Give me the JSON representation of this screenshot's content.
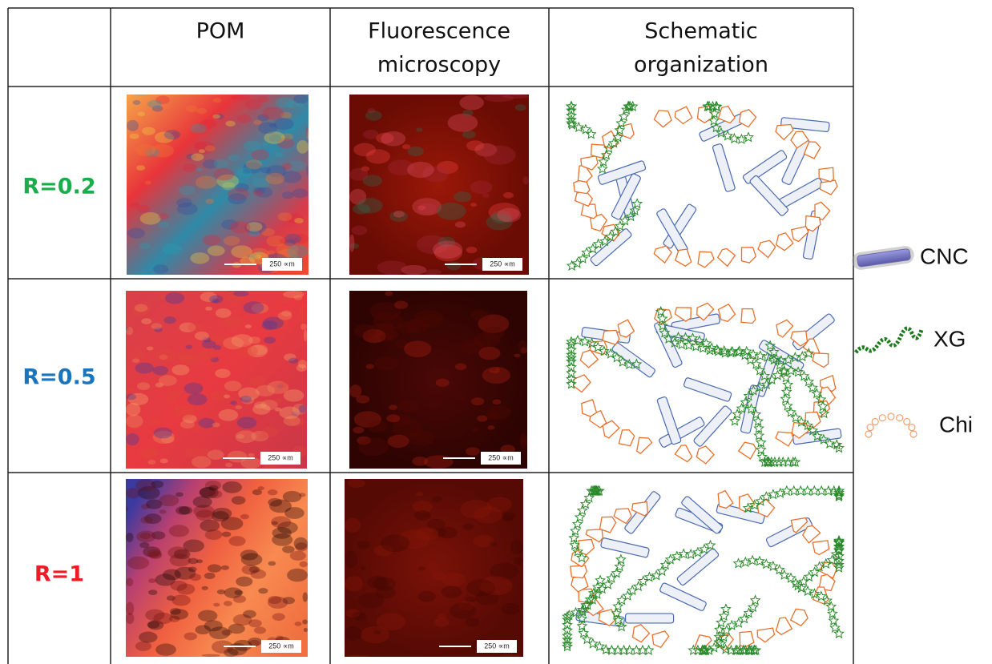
{
  "header": [
    [
      "POM"
    ],
    [
      "Fluorescence",
      "microscopy"
    ],
    [
      "Schematic",
      "organization"
    ]
  ],
  "rows": [
    {
      "label": "R=0.2"
    },
    {
      "label": "R=0.5"
    },
    {
      "label": "R=1"
    }
  ],
  "scale_bar_labels": [
    "250 ∝m",
    "250 ∝m",
    "250 ∝m",
    "250 ∝m",
    "250 ∝m",
    "250 ∝m"
  ],
  "legend": [
    "CNC",
    "XG",
    "Chi"
  ]
}
